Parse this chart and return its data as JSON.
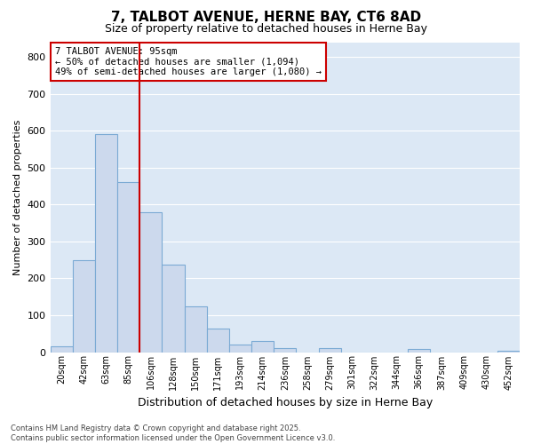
{
  "title": "7, TALBOT AVENUE, HERNE BAY, CT6 8AD",
  "subtitle": "Size of property relative to detached houses in Herne Bay",
  "xlabel": "Distribution of detached houses by size in Herne Bay",
  "ylabel": "Number of detached properties",
  "categories": [
    "20sqm",
    "42sqm",
    "63sqm",
    "85sqm",
    "106sqm",
    "128sqm",
    "150sqm",
    "171sqm",
    "193sqm",
    "214sqm",
    "236sqm",
    "258sqm",
    "279sqm",
    "301sqm",
    "322sqm",
    "344sqm",
    "366sqm",
    "387sqm",
    "409sqm",
    "430sqm",
    "452sqm"
  ],
  "values": [
    15,
    250,
    590,
    460,
    380,
    238,
    125,
    65,
    20,
    30,
    12,
    0,
    10,
    0,
    0,
    0,
    8,
    0,
    0,
    0,
    4
  ],
  "bar_color": "#ccd9ed",
  "bar_edge_color": "#7baad4",
  "plot_bg_color": "#dce8f5",
  "fig_bg_color": "#ffffff",
  "grid_color": "#ffffff",
  "vline_color": "#cc0000",
  "annotation_text": "7 TALBOT AVENUE: 95sqm\n← 50% of detached houses are smaller (1,094)\n49% of semi-detached houses are larger (1,080) →",
  "annotation_box_color": "#ffffff",
  "annotation_box_edge": "#cc0000",
  "ylim": [
    0,
    840
  ],
  "yticks": [
    0,
    100,
    200,
    300,
    400,
    500,
    600,
    700,
    800
  ],
  "footer_line1": "Contains HM Land Registry data © Crown copyright and database right 2025.",
  "footer_line2": "Contains public sector information licensed under the Open Government Licence v3.0."
}
